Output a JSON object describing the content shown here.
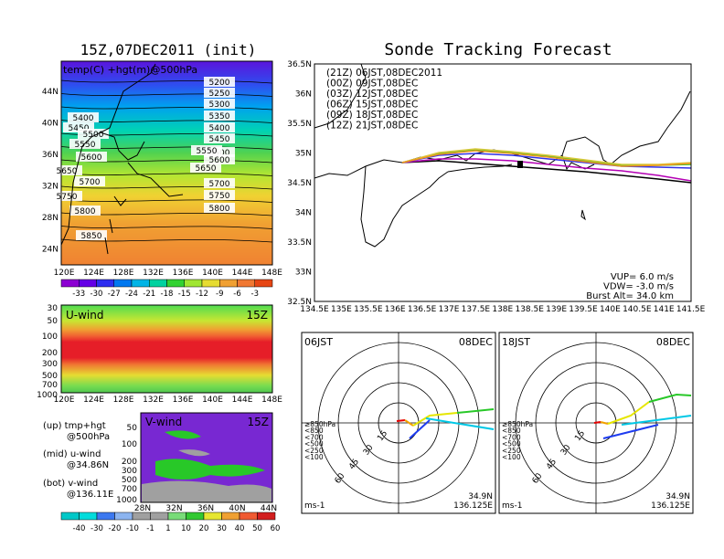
{
  "left_title": "15Z,07DEC2011 (init)",
  "right_title": "Sonde Tracking Forecast",
  "top_map": {
    "overlay_label": "temp(C) +hgt(m)@500hPa",
    "lat_labels": [
      "44N",
      "40N",
      "36N",
      "32N",
      "28N",
      "24N"
    ],
    "lon_labels": [
      "120E",
      "124E",
      "128E",
      "132E",
      "136E",
      "140E",
      "144E",
      "148E"
    ],
    "contour_labels": [
      "5200",
      "5250",
      "5300",
      "5350",
      "5400",
      "5400",
      "5450",
      "5450",
      "5500",
      "5500",
      "5550",
      "5550",
      "5600",
      "5600",
      "5650",
      "5650",
      "5700",
      "5700",
      "5750",
      "5750",
      "5800",
      "5800",
      "5850"
    ],
    "colorbar_labels": [
      "-33",
      "-30",
      "-27",
      "-24",
      "-21",
      "-18",
      "-15",
      "-12",
      "-9",
      "-6",
      "-3"
    ],
    "colorbar_colors": [
      "#8c00d2",
      "#6400e6",
      "#2d2df0",
      "#0078f0",
      "#00b4e6",
      "#00d2a0",
      "#32d232",
      "#a0e632",
      "#e6dc32",
      "#f0a032",
      "#f07832",
      "#e64614"
    ]
  },
  "u_panel": {
    "label": "U-wind",
    "time": "15Z",
    "y_labels": [
      "30",
      "50",
      "100",
      "200",
      "300",
      "500",
      "700",
      "1000"
    ],
    "x_labels": [
      "120E",
      "124E",
      "128E",
      "132E",
      "136E",
      "140E",
      "144E",
      "148E"
    ]
  },
  "v_panel": {
    "label": "V-wind",
    "time": "15Z",
    "y_labels": [
      "50",
      "100",
      "200",
      "300",
      "500",
      "700",
      "1000"
    ],
    "x_labels": [
      "28N",
      "32N",
      "36N",
      "40N",
      "44N"
    ]
  },
  "legend_notes": [
    "(up) tmp+hgt",
    "@500hPa",
    "(mid) u-wind",
    "@34.86N",
    "(bot) v-wind",
    "@136.11E"
  ],
  "wind_colorbar": {
    "labels": [
      "-40",
      "-30",
      "-20",
      "-10",
      "-1",
      "1",
      "10",
      "20",
      "30",
      "40",
      "50",
      "60"
    ],
    "colors": [
      "#00c8c8",
      "#00dcdc",
      "#3c78f0",
      "#8cb4f0",
      "#a0a0a0",
      "#a0a0a0",
      "#78dc78",
      "#32c832",
      "#e6e632",
      "#f0a032",
      "#f05a32",
      "#d21e1e"
    ]
  },
  "track_map": {
    "y_labels": [
      "36.5N",
      "36N",
      "35.5N",
      "35N",
      "34.5N",
      "34N",
      "33.5N",
      "33N",
      "32.5N"
    ],
    "x_labels": [
      "134.5E",
      "135E",
      "135.5E",
      "136E",
      "136.5E",
      "137E",
      "137.5E",
      "138E",
      "138.5E",
      "139E",
      "139.5E",
      "140E",
      "140.5E",
      "141E",
      "141.5E"
    ],
    "legend": [
      {
        "text": "(21Z)  06JST,08DEC2011",
        "color": "#000000"
      },
      {
        "text": "(00Z)  09JST,08DEC",
        "color": "#b400b4"
      },
      {
        "text": "(03Z)  12JST,08DEC",
        "color": "#3232e6"
      },
      {
        "text": "(06Z)  15JST,08DEC",
        "color": "#28c828"
      },
      {
        "text": "(09Z)  18JST,08DEC",
        "color": "#dcc83c"
      },
      {
        "text": "(12Z)  21JST,08DEC",
        "color": "#f0961e"
      }
    ],
    "params": [
      "VUP=  6.0  m/s",
      "VDW= -3.0  m/s",
      "Burst Alt=  34.0  km"
    ]
  },
  "hodographs": [
    {
      "time": "06JST",
      "date": "08DEC",
      "lat": "34.9N",
      "lon": "136.125E",
      "unit": "ms-1"
    },
    {
      "time": "18JST",
      "date": "08DEC",
      "lat": "34.9N",
      "lon": "136.125E",
      "unit": "ms-1"
    }
  ],
  "hodo_ring_labels": [
    "15",
    "30",
    "45",
    "60"
  ],
  "hodo_levels": [
    {
      "text": "≥850hPa",
      "color": "#e60000"
    },
    {
      "text": "<850",
      "color": "#f0a000"
    },
    {
      "text": "<700",
      "color": "#e6e600"
    },
    {
      "text": "<500",
      "color": "#28c828"
    },
    {
      "text": "<250",
      "color": "#00c8e6"
    },
    {
      "text": "<100",
      "color": "#1e3cf0"
    }
  ]
}
